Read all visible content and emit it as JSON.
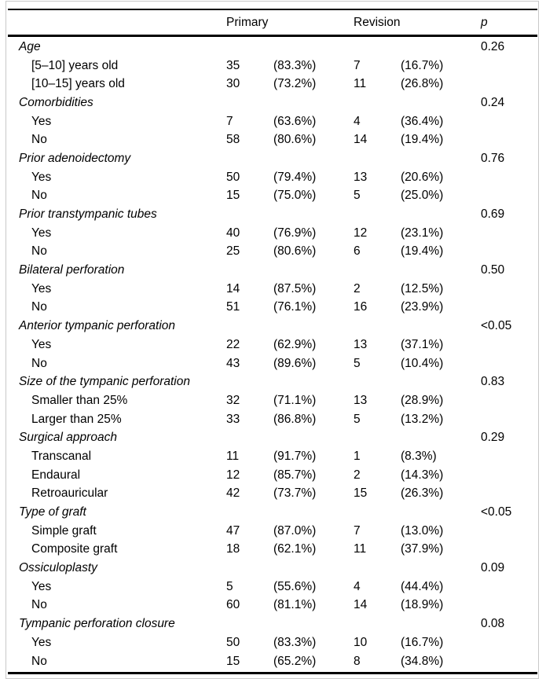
{
  "table": {
    "header": {
      "primary": "Primary",
      "revision": "Revision",
      "p": "p"
    },
    "sections": [
      {
        "label": "Age",
        "p": "0.26",
        "rows": [
          {
            "label": "[5–10] years old",
            "primary_n": "35",
            "primary_pct": "(83.3%)",
            "revision_n": "7",
            "revision_pct": "(16.7%)"
          },
          {
            "label": "[10–15] years old",
            "primary_n": "30",
            "primary_pct": "(73.2%)",
            "revision_n": "11",
            "revision_pct": "(26.8%)"
          }
        ]
      },
      {
        "label": "Comorbidities",
        "p": "0.24",
        "rows": [
          {
            "label": "Yes",
            "primary_n": "7",
            "primary_pct": "(63.6%)",
            "revision_n": "4",
            "revision_pct": "(36.4%)"
          },
          {
            "label": "No",
            "primary_n": "58",
            "primary_pct": "(80.6%)",
            "revision_n": "14",
            "revision_pct": "(19.4%)"
          }
        ]
      },
      {
        "label": "Prior adenoidectomy",
        "p": "0.76",
        "rows": [
          {
            "label": "Yes",
            "primary_n": "50",
            "primary_pct": "(79.4%)",
            "revision_n": "13",
            "revision_pct": "(20.6%)"
          },
          {
            "label": "No",
            "primary_n": "15",
            "primary_pct": "(75.0%)",
            "revision_n": "5",
            "revision_pct": "(25.0%)"
          }
        ]
      },
      {
        "label": "Prior transtympanic tubes",
        "p": "0.69",
        "rows": [
          {
            "label": "Yes",
            "primary_n": "40",
            "primary_pct": "(76.9%)",
            "revision_n": "12",
            "revision_pct": "(23.1%)"
          },
          {
            "label": "No",
            "primary_n": "25",
            "primary_pct": "(80.6%)",
            "revision_n": "6",
            "revision_pct": "(19.4%)"
          }
        ]
      },
      {
        "label": "Bilateral perforation",
        "p": "0.50",
        "rows": [
          {
            "label": "Yes",
            "primary_n": "14",
            "primary_pct": "(87.5%)",
            "revision_n": "2",
            "revision_pct": "(12.5%)"
          },
          {
            "label": "No",
            "primary_n": "51",
            "primary_pct": "(76.1%)",
            "revision_n": "16",
            "revision_pct": "(23.9%)"
          }
        ]
      },
      {
        "label": "Anterior tympanic perforation",
        "p": "<0.05",
        "rows": [
          {
            "label": "Yes",
            "primary_n": "22",
            "primary_pct": "(62.9%)",
            "revision_n": "13",
            "revision_pct": "(37.1%)"
          },
          {
            "label": "No",
            "primary_n": "43",
            "primary_pct": "(89.6%)",
            "revision_n": "5",
            "revision_pct": "(10.4%)"
          }
        ]
      },
      {
        "label": "Size of the tympanic perforation",
        "p": "0.83",
        "rows": [
          {
            "label": "Smaller than 25%",
            "primary_n": "32",
            "primary_pct": "(71.1%)",
            "revision_n": "13",
            "revision_pct": "(28.9%)"
          },
          {
            "label": "Larger than 25%",
            "primary_n": "33",
            "primary_pct": "(86.8%)",
            "revision_n": "5",
            "revision_pct": "(13.2%)"
          }
        ]
      },
      {
        "label": "Surgical approach",
        "p": "0.29",
        "rows": [
          {
            "label": "Transcanal",
            "primary_n": "11",
            "primary_pct": "(91.7%)",
            "revision_n": "1",
            "revision_pct": "(8.3%)"
          },
          {
            "label": "Endaural",
            "primary_n": "12",
            "primary_pct": "(85.7%)",
            "revision_n": "2",
            "revision_pct": "(14.3%)"
          },
          {
            "label": "Retroauricular",
            "primary_n": "42",
            "primary_pct": "(73.7%)",
            "revision_n": "15",
            "revision_pct": "(26.3%)"
          }
        ]
      },
      {
        "label": "Type of graft",
        "p": "<0.05",
        "rows": [
          {
            "label": "Simple graft",
            "primary_n": "47",
            "primary_pct": "(87.0%)",
            "revision_n": "7",
            "revision_pct": "(13.0%)"
          },
          {
            "label": "Composite graft",
            "primary_n": "18",
            "primary_pct": "(62.1%)",
            "revision_n": "11",
            "revision_pct": "(37.9%)"
          }
        ]
      },
      {
        "label": "Ossiculoplasty",
        "p": "0.09",
        "rows": [
          {
            "label": "Yes",
            "primary_n": "5",
            "primary_pct": "(55.6%)",
            "revision_n": "4",
            "revision_pct": "(44.4%)"
          },
          {
            "label": "No",
            "primary_n": "60",
            "primary_pct": "(81.1%)",
            "revision_n": "14",
            "revision_pct": "(18.9%)"
          }
        ]
      },
      {
        "label": "Tympanic perforation closure",
        "p": "0.08",
        "rows": [
          {
            "label": "Yes",
            "primary_n": "50",
            "primary_pct": "(83.3%)",
            "revision_n": "10",
            "revision_pct": "(16.7%)"
          },
          {
            "label": "No",
            "primary_n": "15",
            "primary_pct": "(65.2%)",
            "revision_n": "8",
            "revision_pct": "(34.8%)"
          }
        ]
      }
    ]
  }
}
